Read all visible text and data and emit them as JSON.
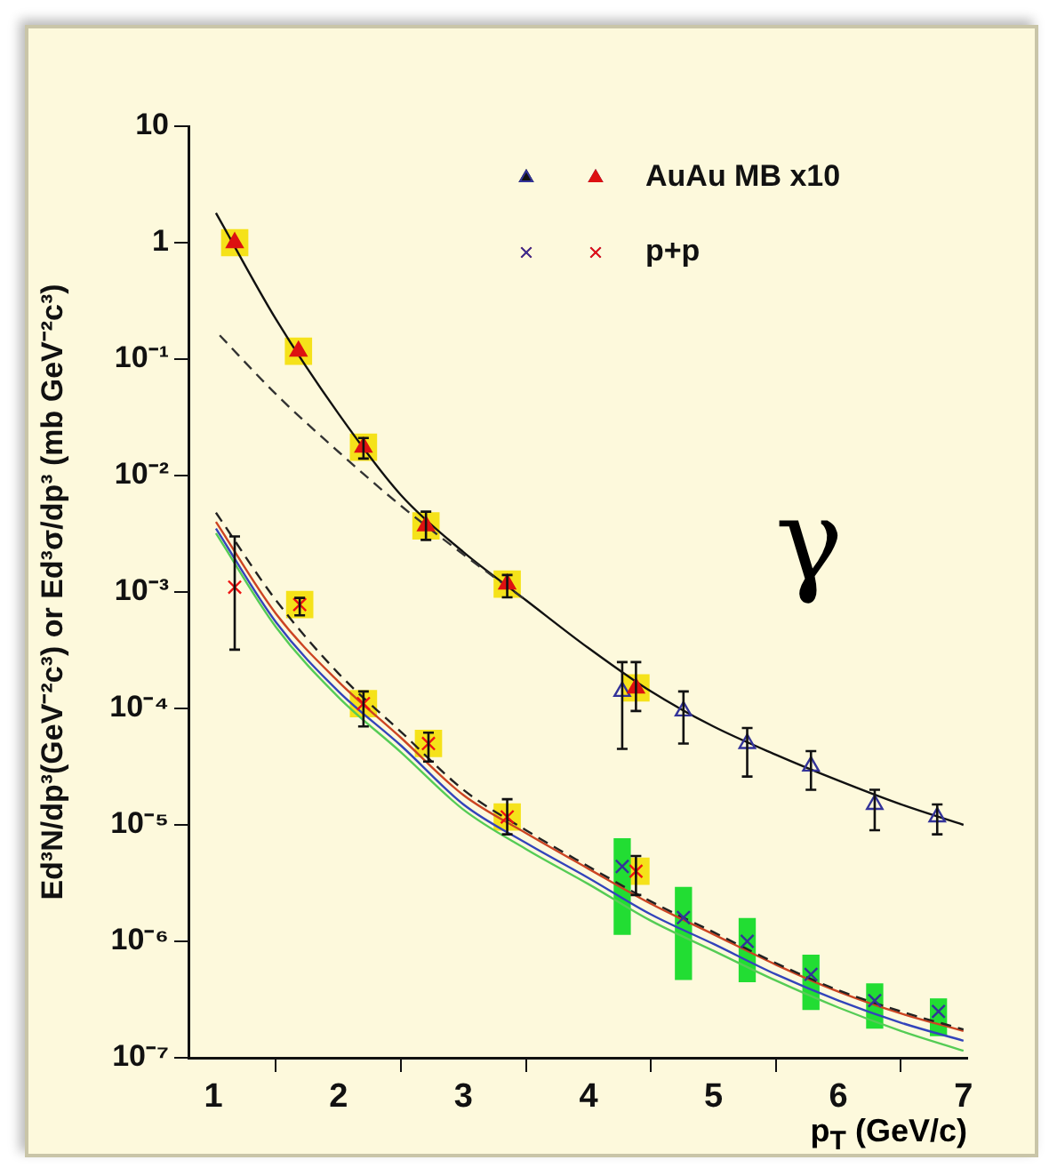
{
  "chart_data": {
    "type": "scatter",
    "ylabel": "Ed³N/dp³(GeV⁻²c³) or Ed³σ/dp³ (mb GeV⁻²c³)",
    "xlabel": "p$_{T}$ (GeV/c)",
    "xlim": [
      0.8,
      7.03
    ],
    "xticks": [
      1,
      2,
      3,
      4,
      5,
      6,
      7
    ],
    "log": "y",
    "ylim": [
      1e-07,
      10
    ],
    "yticks": [
      {
        "value": 1e-07,
        "label": "10⁻⁷"
      },
      {
        "value": 1e-06,
        "label": "10⁻⁶"
      },
      {
        "value": 1e-05,
        "label": "10⁻⁵"
      },
      {
        "value": 0.0001,
        "label": "10⁻⁴"
      },
      {
        "value": 0.001,
        "label": "10⁻³"
      },
      {
        "value": 0.01,
        "label": "10⁻²"
      },
      {
        "value": 0.1,
        "label": "10⁻¹"
      },
      1,
      10
    ],
    "legend": "top right",
    "annotations": [
      "γ"
    ],
    "series": [
      {
        "marker": "square",
        "color": "#f5e21a",
        "x": [
          1.17,
          1.68,
          2.2,
          2.7,
          3.35,
          4.38,
          1.69,
          2.2,
          2.72,
          3.35,
          4.38
        ],
        "values": [
          1.0,
          0.117,
          0.0175,
          0.0037,
          0.00117,
          0.00015,
          0.00078,
          0.00011,
          5e-05,
          1.17e-05,
          4e-06
        ]
      },
      {
        "type": "bar",
        "color": "#22dd33",
        "x": [
          4.27,
          4.76,
          5.27,
          5.78,
          6.29,
          6.8
        ],
        "base": [
          1.15e-06,
          4.7e-07,
          4.5e-07,
          2.6e-07,
          1.8e-07,
          1.55e-07
        ],
        "values": [
          6.45e-06,
          2.43e-06,
          1.12e-06,
          5e-07,
          2.5e-07,
          1.65e-07
        ]
      },
      {
        "type": "line",
        "marker": "none",
        "line_style": "solid",
        "color": "#111111",
        "x": [
          1.02,
          1.5,
          2,
          2.5,
          3,
          3.5,
          4,
          4.5,
          5,
          5.5,
          6,
          6.5,
          7
        ],
        "values": [
          1.8,
          0.22,
          0.034,
          0.0068,
          0.0022,
          0.00085,
          0.00033,
          0.00014,
          7e-05,
          4e-05,
          2.4e-05,
          1.5e-05,
          1e-05
        ]
      },
      {
        "type": "line",
        "marker": "none",
        "line_style": "dashed",
        "color": "#333333",
        "x": [
          1.05,
          1.5,
          2,
          2.5,
          3,
          3.5
        ],
        "values": [
          0.16,
          0.05,
          0.016,
          0.0055,
          0.0021,
          0.00085
        ]
      },
      {
        "type": "line",
        "marker": "none",
        "line_style": "solid",
        "color": "#55cc55",
        "x": [
          1.02,
          1.5,
          2,
          2.5,
          3,
          3.5,
          4,
          4.5,
          5,
          5.5,
          6,
          6.5,
          7
        ],
        "values": [
          0.0032,
          0.0005,
          0.000125,
          4.2e-05,
          1.35e-05,
          6.2e-06,
          3.1e-06,
          1.5e-06,
          8.3e-07,
          4.6e-07,
          2.7e-07,
          1.7e-07,
          1.15e-07
        ]
      },
      {
        "type": "line",
        "marker": "none",
        "line_style": "solid",
        "color": "#3344bb",
        "x": [
          1.02,
          1.5,
          2,
          2.5,
          3,
          3.5,
          4,
          4.5,
          5,
          5.5,
          6,
          6.5,
          7
        ],
        "values": [
          0.0035,
          0.00055,
          0.00014,
          4.8e-05,
          1.5e-05,
          7e-06,
          3.5e-06,
          1.7e-06,
          9.5e-07,
          5.2e-07,
          3.1e-07,
          2e-07,
          1.4e-07
        ]
      },
      {
        "type": "line",
        "marker": "none",
        "line_style": "solid",
        "color": "#cc4422",
        "x": [
          1.02,
          1.5,
          2,
          2.5,
          3,
          3.5,
          4,
          4.5,
          5,
          5.5,
          6,
          6.5,
          7
        ],
        "values": [
          0.004,
          0.00065,
          0.00017,
          5.6e-05,
          1.8e-05,
          8.5e-06,
          4.2e-06,
          2.1e-06,
          1.15e-06,
          6.3e-07,
          3.7e-07,
          2.4e-07,
          1.7e-07
        ]
      },
      {
        "type": "line",
        "marker": "none",
        "line_style": "dashed",
        "color": "#222222",
        "x": [
          1.02,
          1.5,
          2,
          2.5,
          3,
          3.5,
          4,
          4.5,
          5,
          5.5,
          6,
          6.5,
          7
        ],
        "values": [
          0.0048,
          0.00085,
          0.0002,
          6.3e-05,
          2e-05,
          9e-06,
          4.4e-06,
          2.2e-06,
          1.2e-06,
          6.5e-07,
          3.8e-07,
          2.5e-07,
          1.75e-07
        ]
      },
      {
        "marker": "triangle",
        "color": "#333399",
        "x": [
          4.27,
          4.76,
          5.27,
          5.78,
          6.29,
          6.79
        ],
        "values": [
          0.00014,
          9.5e-05,
          5e-05,
          3.2e-05,
          1.5e-05,
          1.17e-05
        ],
        "errors": [
          [
            4.5e-05,
            0.00025
          ],
          [
            5e-05,
            0.00014
          ],
          [
            2.6e-05,
            6.8e-05
          ],
          [
            2e-05,
            4.3e-05
          ],
          [
            9e-06,
            2e-05
          ],
          [
            8.3e-06,
            1.5e-05
          ]
        ]
      },
      {
        "name": "AuAu MB x10",
        "marker": "triangle",
        "color": "#dd1111",
        "x": [
          1.17,
          1.68,
          2.2,
          2.7,
          3.35,
          4.38
        ],
        "values": [
          1.0,
          0.117,
          0.0175,
          0.0037,
          0.00117,
          0.00015
        ],
        "errors": [
          null,
          null,
          [
            0.014,
            0.021
          ],
          [
            0.0028,
            0.0049
          ],
          [
            0.0009,
            0.0014
          ],
          [
            9.5e-05,
            0.00025
          ]
        ]
      },
      {
        "marker": "cross",
        "color": "#333399",
        "x": [
          4.27,
          4.76,
          5.27,
          5.78,
          6.29,
          6.8
        ],
        "values": [
          4.4e-06,
          1.6e-06,
          1e-06,
          5.2e-07,
          3.1e-07,
          2.5e-07
        ]
      },
      {
        "name": "p+p",
        "marker": "cross",
        "color": "#ee1111",
        "x": [
          1.17,
          1.69,
          2.2,
          2.72,
          3.35,
          4.38
        ],
        "values": [
          0.0011,
          0.00078,
          0.00011,
          5e-05,
          1.17e-05,
          4e-06
        ],
        "errors": [
          [
            0.00032,
            0.003
          ],
          [
            0.00063,
            0.00089
          ],
          [
            7e-05,
            0.00014
          ],
          [
            3.5e-05,
            6.2e-05
          ],
          [
            8.3e-06,
            1.66e-05
          ],
          [
            2.5e-06,
            5.4e-06
          ]
        ]
      }
    ]
  }
}
